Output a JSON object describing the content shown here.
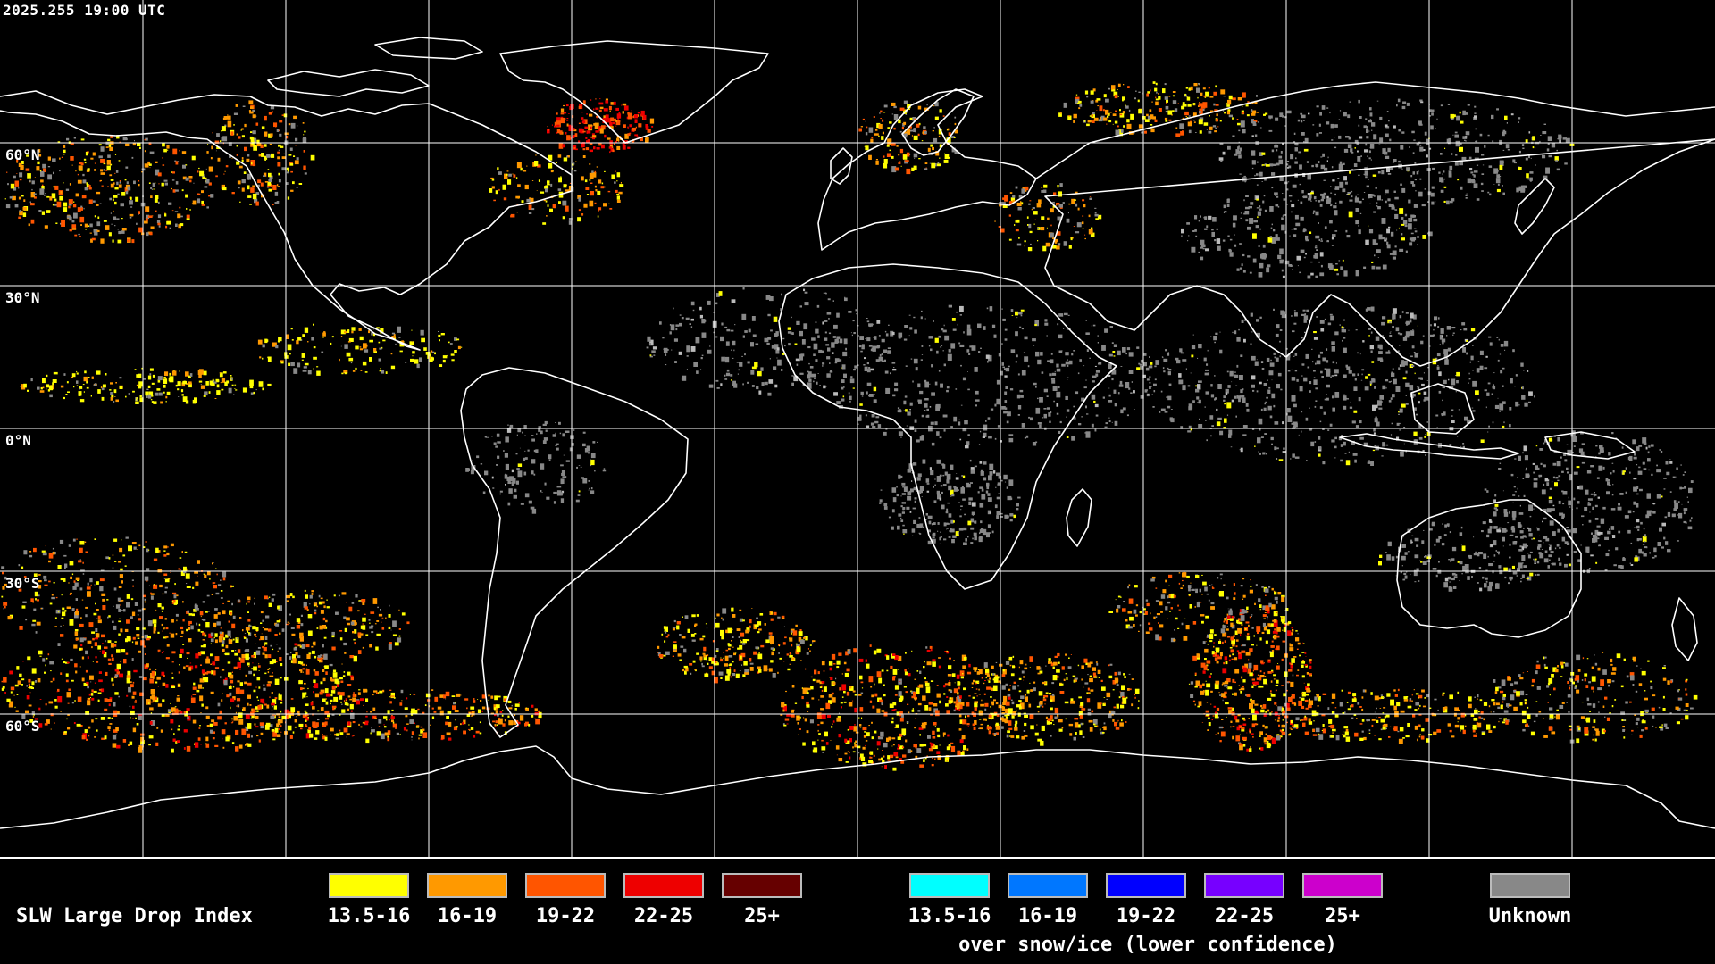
{
  "timestamp": "2025.255 19:00 UTC",
  "latitude_labels": [
    "60°N",
    "30°N",
    "0°N",
    "30°S",
    "60°S"
  ],
  "legend": {
    "title": "SLW Large Drop Index",
    "primary": [
      {
        "label": "13.5-16",
        "color": "#ffff00"
      },
      {
        "label": "16-19",
        "color": "#ff9900"
      },
      {
        "label": "19-22",
        "color": "#ff5500"
      },
      {
        "label": "22-25",
        "color": "#ee0000"
      },
      {
        "label": "25+",
        "color": "#660000"
      }
    ],
    "snow_ice": [
      {
        "label": "13.5-16",
        "color": "#00ffff"
      },
      {
        "label": "16-19",
        "color": "#0077ff"
      },
      {
        "label": "19-22",
        "color": "#0000ff"
      },
      {
        "label": "22-25",
        "color": "#7700ff"
      },
      {
        "label": "25+",
        "color": "#cc00cc"
      }
    ],
    "snow_ice_caption": "over snow/ice (lower confidence)",
    "unknown": {
      "label": "Unknown",
      "color": "#888888"
    }
  },
  "colors": {
    "coastline": "#ffffff",
    "grid": "#ffffff",
    "background": "#000000"
  }
}
